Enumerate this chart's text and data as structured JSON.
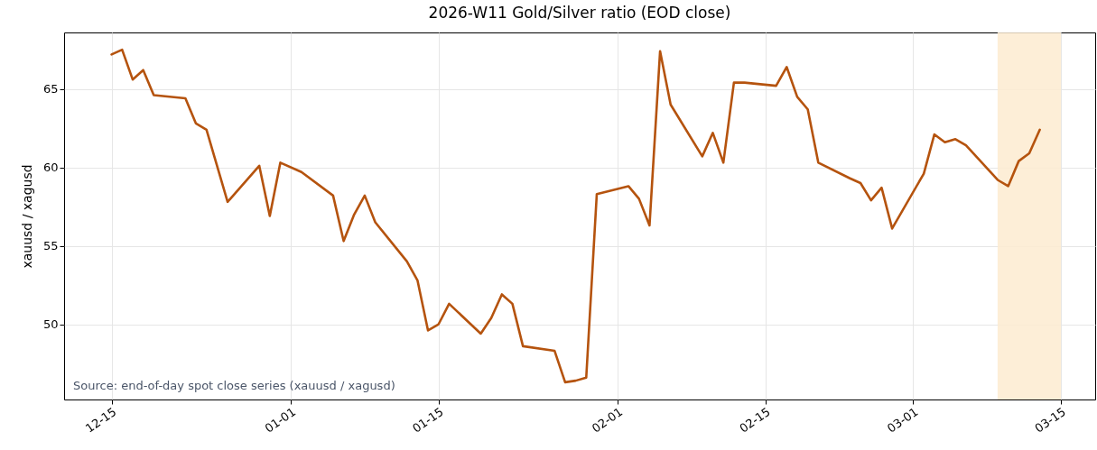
{
  "chart_data": {
    "type": "line",
    "title": "2026-W11 Gold/Silver ratio (EOD close)",
    "ylabel": "xauusd / xagusd",
    "annotations": [
      "Source: end-of-day spot close series (xauusd / xagusd)"
    ],
    "x": [
      "2025-12-15",
      "2025-12-16",
      "2025-12-17",
      "2025-12-18",
      "2025-12-19",
      "2025-12-22",
      "2025-12-23",
      "2025-12-24",
      "2025-12-26",
      "2025-12-29",
      "2025-12-30",
      "2025-12-31",
      "2026-01-02",
      "2026-01-05",
      "2026-01-06",
      "2026-01-07",
      "2026-01-08",
      "2026-01-09",
      "2026-01-12",
      "2026-01-13",
      "2026-01-14",
      "2026-01-15",
      "2026-01-16",
      "2026-01-19",
      "2026-01-20",
      "2026-01-21",
      "2026-01-22",
      "2026-01-23",
      "2026-01-26",
      "2026-01-27",
      "2026-01-28",
      "2026-01-29",
      "2026-01-30",
      "2026-02-02",
      "2026-02-03",
      "2026-02-04",
      "2026-02-05",
      "2026-02-06",
      "2026-02-09",
      "2026-02-10",
      "2026-02-11",
      "2026-02-12",
      "2026-02-13",
      "2026-02-16",
      "2026-02-17",
      "2026-02-18",
      "2026-02-19",
      "2026-02-20",
      "2026-02-23",
      "2026-02-24",
      "2026-02-25",
      "2026-02-26",
      "2026-02-27",
      "2026-03-02",
      "2026-03-03",
      "2026-03-04",
      "2026-03-05",
      "2026-03-06",
      "2026-03-09",
      "2026-03-10",
      "2026-03-11",
      "2026-03-12",
      "2026-03-13"
    ],
    "series": [
      {
        "color": "#b5530e",
        "values": [
          67.2,
          67.5,
          65.6,
          66.2,
          64.6,
          64.4,
          62.8,
          62.4,
          57.8,
          60.1,
          56.9,
          60.3,
          59.7,
          58.2,
          55.3,
          57.0,
          58.2,
          56.5,
          54.0,
          52.8,
          49.6,
          50.0,
          51.3,
          49.4,
          50.4,
          51.9,
          51.3,
          48.6,
          48.3,
          46.3,
          46.4,
          46.6,
          58.3,
          58.8,
          58.0,
          56.3,
          67.4,
          64.0,
          60.7,
          62.2,
          60.3,
          65.4,
          65.4,
          65.2,
          66.4,
          64.5,
          63.7,
          60.3,
          59.3,
          59.0,
          57.9,
          58.7,
          56.1,
          59.6,
          62.1,
          61.6,
          61.8,
          61.4,
          59.2,
          58.8,
          60.4,
          60.9,
          62.4
        ]
      }
    ],
    "xlim": [
      "2025-12-10T12:00",
      "2026-03-18T06:00"
    ],
    "xticks": [
      {
        "value": "2025-12-15",
        "label": "12-15"
      },
      {
        "value": "2026-01-01",
        "label": "01-01"
      },
      {
        "value": "2026-01-15",
        "label": "01-15"
      },
      {
        "value": "2026-02-01",
        "label": "02-01"
      },
      {
        "value": "2026-02-15",
        "label": "02-15"
      },
      {
        "value": "2026-03-01",
        "label": "03-01"
      },
      {
        "value": "2026-03-15",
        "label": "03-15"
      }
    ],
    "ylim": [
      45.2,
      68.6
    ],
    "yticks": [
      50,
      55,
      60,
      65
    ],
    "bands": [
      {
        "axis": "x",
        "from": "2026-03-09",
        "to": "2026-03-15",
        "color": "#fdebd0"
      }
    ],
    "grid": true,
    "marker": "none",
    "line_style": "solid"
  }
}
